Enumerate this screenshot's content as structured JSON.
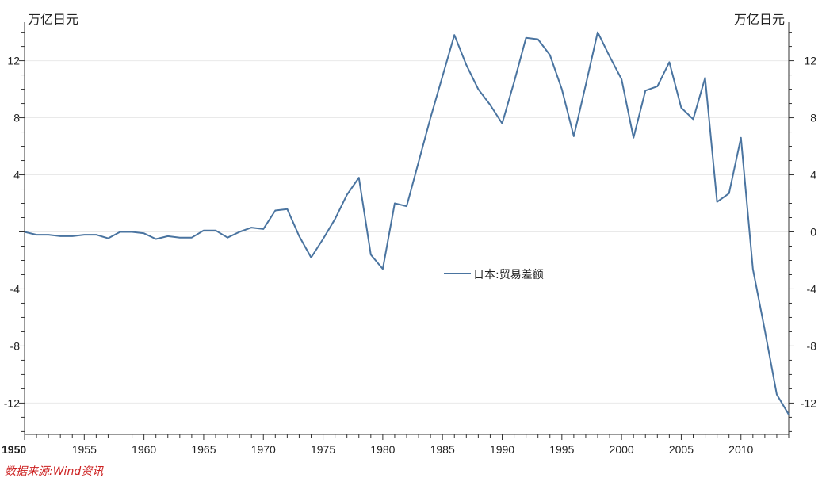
{
  "chart_data": {
    "type": "line",
    "title": "",
    "xlabel": "",
    "ylabel": "",
    "y_unit_left": "万亿日元",
    "y_unit_right": "万亿日元",
    "xlim": [
      1950,
      2014
    ],
    "ylim": [
      -14.2,
      14.7
    ],
    "x_ticks": [
      1950,
      1955,
      1960,
      1965,
      1970,
      1975,
      1980,
      1985,
      1990,
      1995,
      2000,
      2005,
      2010
    ],
    "y_ticks": [
      -12,
      -8,
      -4,
      0,
      4,
      8,
      12
    ],
    "y_tick_labels_left": [
      "-12",
      "-8",
      "-4",
      "",
      "4",
      "8",
      "12"
    ],
    "y_tick_labels_right": [
      "-12",
      "-8",
      "-4",
      "0",
      "4",
      "8",
      "12"
    ],
    "grid": "horizontal",
    "legend_position": "center",
    "series": [
      {
        "name": "日本:贸易差额",
        "color": "#4a74a0",
        "x": [
          1950,
          1951,
          1952,
          1953,
          1954,
          1955,
          1956,
          1957,
          1958,
          1959,
          1960,
          1961,
          1962,
          1963,
          1964,
          1965,
          1966,
          1967,
          1968,
          1969,
          1970,
          1971,
          1972,
          1973,
          1974,
          1975,
          1976,
          1977,
          1978,
          1979,
          1980,
          1981,
          1982,
          1983,
          1984,
          1985,
          1986,
          1987,
          1988,
          1989,
          1990,
          1991,
          1992,
          1993,
          1994,
          1995,
          1996,
          1997,
          1998,
          1999,
          2000,
          2001,
          2002,
          2003,
          2004,
          2005,
          2006,
          2007,
          2008,
          2009,
          2010,
          2011,
          2012,
          2013,
          2014
        ],
        "values": [
          0.0,
          -0.2,
          -0.2,
          -0.3,
          -0.3,
          -0.2,
          -0.2,
          -0.45,
          0.0,
          0.0,
          -0.1,
          -0.5,
          -0.3,
          -0.4,
          -0.4,
          0.1,
          0.1,
          -0.4,
          0.0,
          0.3,
          0.2,
          1.5,
          1.6,
          -0.3,
          -1.8,
          -0.5,
          0.9,
          2.6,
          3.8,
          -1.6,
          -2.6,
          2.0,
          1.8,
          4.9,
          8.0,
          10.9,
          13.8,
          11.7,
          10.0,
          8.9,
          7.6,
          10.5,
          13.6,
          13.5,
          12.4,
          10.0,
          6.7,
          10.3,
          14.0,
          12.3,
          10.7,
          6.6,
          9.9,
          10.2,
          11.9,
          8.7,
          7.9,
          10.8,
          2.1,
          2.7,
          6.6,
          -2.6,
          -6.9,
          -11.4,
          -12.8
        ]
      }
    ]
  },
  "source_note": "数据来源:Wind资讯"
}
